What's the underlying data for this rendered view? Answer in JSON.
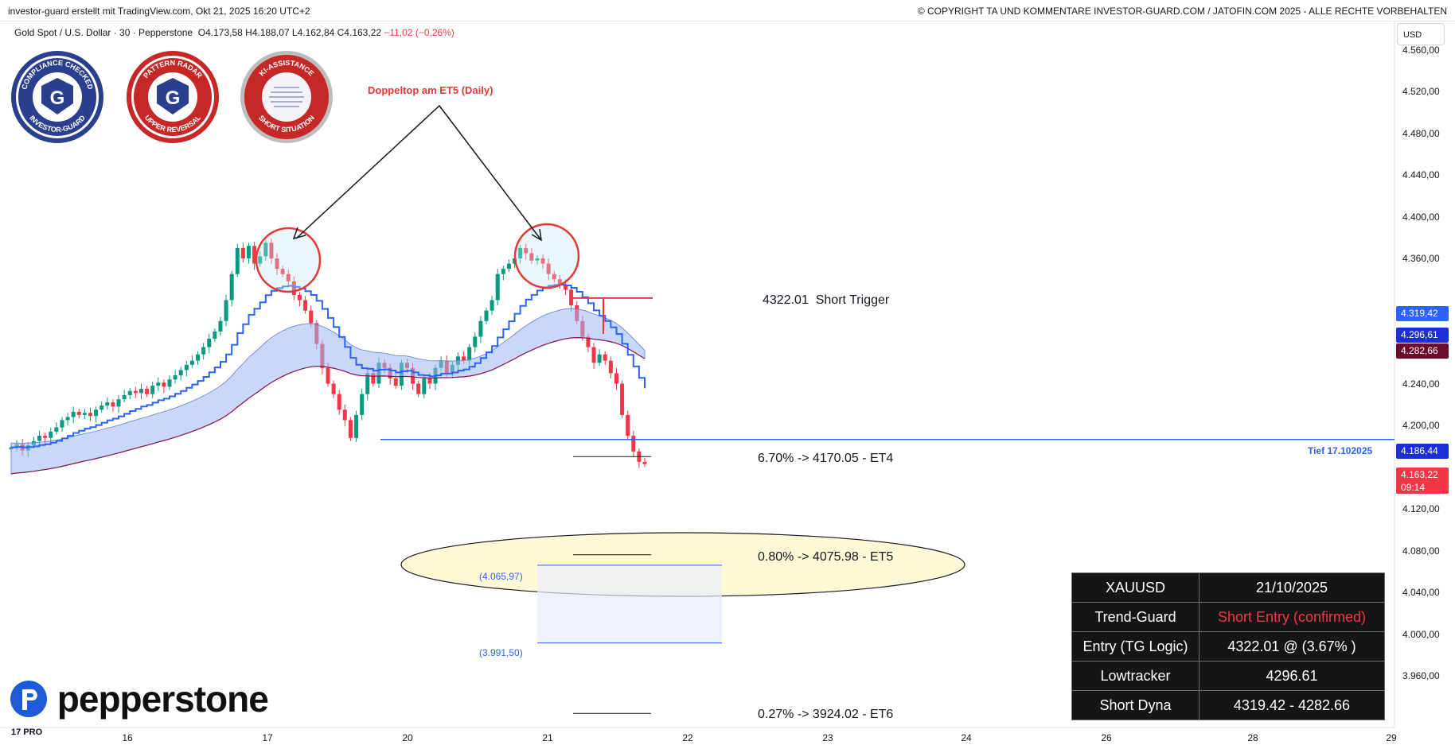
{
  "header": {
    "left_text": "investor-guard erstellt mit TradingView.com, Okt 21, 2025 16:20 UTC+2",
    "right_text": "© COPYRIGHT TA UND KOMMENTARE INVESTOR-GUARD.COM / JATOFIN.COM 2025 - ALLE RECHTE VORBEHALTEN"
  },
  "symbol": {
    "name": "Gold Spot / U.S. Dollar · 30 · Pepperstone",
    "open": "O4.173,58",
    "high": "H4.188,07",
    "low": "L4.162,84",
    "close": "C4.163,22",
    "change": "−11,02 (−0,26%)"
  },
  "badges": {
    "b1": {
      "top": "COMPLIANCE CHECKED",
      "bottom": "INVESTOR-GUARD",
      "letter": "G"
    },
    "b2": {
      "top": "PATTERN RADAR",
      "bottom": "UPPER REVERSAL",
      "letter": "G"
    },
    "b3": {
      "top": "KI-ASSISTANCE",
      "bottom": "SHORT SITUATION"
    }
  },
  "annotation_title": "Doppeltop am ET5 (Daily)",
  "levels": {
    "short_trigger": "4322.01  Short Trigger",
    "et4": "6.70% -> 4170.05 - ET4",
    "et5": "0.80% -> 4075.98 - ET5",
    "et6": "0.27% -> 3924.02 - ET6",
    "box_top": "(4.065,97)",
    "box_bottom": "(3.991,50)",
    "tief_label": "Tief 17.102025"
  },
  "price_axis": {
    "currency": "USD",
    "ticks": [
      "4.560,00",
      "4.520,00",
      "4.480,00",
      "4.440,00",
      "4.400,00",
      "4.360,00",
      "4.240,00",
      "4.200,00",
      "4.120,00",
      "4.080,00",
      "4.040,00",
      "4.000,00",
      "3.960,00"
    ],
    "tags": {
      "t1": "4.319,42",
      "t2": "4.296,61",
      "t3": "4.282,66",
      "t4": "4.186,44",
      "t5": "4.163,22",
      "t5_time": "09:14"
    }
  },
  "time_axis": [
    "16",
    "17",
    "20",
    "21",
    "22",
    "23",
    "24",
    "26",
    "28",
    "29"
  ],
  "table": {
    "rows": [
      {
        "k": "XAUUSD",
        "v": "21/10/2025"
      },
      {
        "k": "Trend-Guard",
        "v": "Short Entry (confirmed)"
      },
      {
        "k": "Entry (TG Logic)",
        "v": "4322.01 @ (3.67% )"
      },
      {
        "k": "Lowtracker",
        "v": "4296.61"
      },
      {
        "k": "Short Dyna",
        "v": "4319.42 - 4282.66"
      }
    ]
  },
  "brand": {
    "logo": "pepperstone",
    "tv": "17 PRO"
  },
  "colors": {
    "up": "#089981",
    "down": "#f23645",
    "blue": "#2962ff",
    "maroon": "#880e4f",
    "band": "#9fb8f0"
  },
  "chart_data": {
    "type": "candlestick",
    "instrument": "XAUUSD",
    "timeframe": "30",
    "ylim": [
      3920,
      4580
    ],
    "closes": [
      4179,
      4182,
      4176,
      4181,
      4185,
      4190,
      4188,
      4194,
      4198,
      4205,
      4208,
      4213,
      4210,
      4212,
      4209,
      4215,
      4219,
      4222,
      4218,
      4225,
      4229,
      4233,
      4231,
      4235,
      4230,
      4238,
      4241,
      4237,
      4244,
      4248,
      4253,
      4258,
      4262,
      4268,
      4275,
      4283,
      4290,
      4300,
      4320,
      4345,
      4370,
      4360,
      4372,
      4355,
      4362,
      4375,
      4360,
      4350,
      4345,
      4338,
      4325,
      4320,
      4310,
      4298,
      4278,
      4255,
      4240,
      4230,
      4215,
      4205,
      4188,
      4210,
      4230,
      4250,
      4240,
      4260,
      4255,
      4245,
      4238,
      4260,
      4255,
      4240,
      4230,
      4245,
      4240,
      4255,
      4262,
      4250,
      4258,
      4266,
      4262,
      4275,
      4285,
      4300,
      4310,
      4320,
      4345,
      4350,
      4355,
      4360,
      4370,
      4365,
      4358,
      4360,
      4355,
      4345,
      4340,
      4335,
      4330,
      4315,
      4300,
      4285,
      4275,
      4260,
      4268,
      4262,
      4250,
      4240,
      4210,
      4190,
      4175,
      4165,
      4163
    ],
    "short_trigger": 4322.01,
    "lowtracker": 4296.61,
    "short_dyna": [
      4319.42,
      4282.66
    ],
    "last": 4163.22,
    "tief": 4186.44,
    "targets": {
      "ET4": 4170.05,
      "ET5": 4075.98,
      "ET6": 3924.02
    },
    "box": [
      4065.97,
      3991.5
    ]
  }
}
